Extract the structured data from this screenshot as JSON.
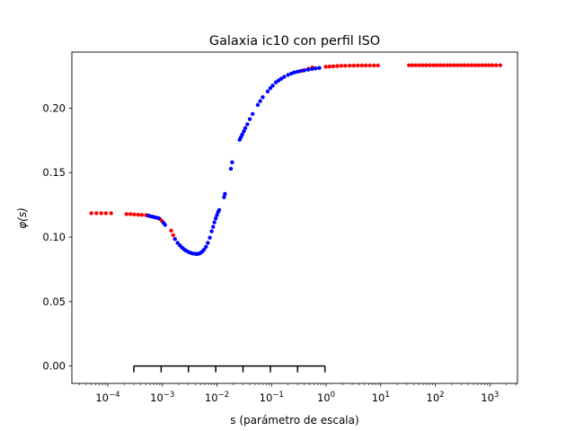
{
  "chart_data": {
    "type": "scatter",
    "title": "Galaxia ic10 con perfil ISO",
    "xlabel": "s (parámetro de escala)",
    "ylabel": "φ(s)",
    "xscale": "log",
    "xlim": [
      2.2e-05,
      3200
    ],
    "ylim": [
      -0.0135,
      0.2435
    ],
    "grid": false,
    "y_ticks": [
      0.0,
      0.05,
      0.1,
      0.15,
      0.2
    ],
    "y_tick_labels": [
      "0.00",
      "0.05",
      "0.10",
      "0.15",
      "0.20"
    ],
    "x_ticks": [
      0.0001,
      0.001,
      0.01,
      0.1,
      1,
      10,
      100,
      1000
    ],
    "x_tick_labels": [
      {
        "base": "10",
        "exp": "−4"
      },
      {
        "base": "10",
        "exp": "−3"
      },
      {
        "base": "10",
        "exp": "−2"
      },
      {
        "base": "10",
        "exp": "−1"
      },
      {
        "base": "10",
        "exp": "0"
      },
      {
        "base": "10",
        "exp": "1"
      },
      {
        "base": "10",
        "exp": "2"
      },
      {
        "base": "10",
        "exp": "3"
      }
    ],
    "series": [
      {
        "color": "#ff0000",
        "points": [
          [
            5e-05,
            0.1185
          ],
          [
            6.2e-05,
            0.1185
          ],
          [
            7.6e-05,
            0.1185
          ],
          [
            9.2e-05,
            0.1185
          ],
          [
            0.000115,
            0.1185
          ],
          [
            0.00022,
            0.1178
          ],
          [
            0.00026,
            0.1178
          ],
          [
            0.000305,
            0.1176
          ],
          [
            0.00036,
            0.1174
          ],
          [
            0.00042,
            0.1172
          ],
          [
            0.0005,
            0.117
          ],
          [
            0.0009,
            0.114
          ],
          [
            0.00098,
            0.1125
          ],
          [
            0.00145,
            0.105
          ],
          [
            0.00158,
            0.1015
          ],
          [
            0.38,
            0.2292
          ],
          [
            0.47,
            0.2305
          ],
          [
            0.56,
            0.2315
          ],
          [
            0.98,
            0.2321
          ],
          [
            1.15,
            0.2323
          ],
          [
            1.35,
            0.2325
          ],
          [
            1.6,
            0.2327
          ],
          [
            1.9,
            0.2328
          ],
          [
            2.25,
            0.2329
          ],
          [
            2.7,
            0.233
          ],
          [
            3.2,
            0.233
          ],
          [
            3.8,
            0.2331
          ],
          [
            4.5,
            0.2331
          ],
          [
            5.3,
            0.2331
          ],
          [
            6.3,
            0.2331
          ],
          [
            7.5,
            0.2331
          ],
          [
            8.9,
            0.2331
          ],
          [
            33,
            0.2333
          ],
          [
            38,
            0.2333
          ],
          [
            44,
            0.2333
          ],
          [
            51,
            0.2333
          ],
          [
            59,
            0.2333
          ],
          [
            68,
            0.2333
          ],
          [
            79,
            0.2333
          ],
          [
            92,
            0.2333
          ],
          [
            106,
            0.2333
          ],
          [
            123,
            0.2333
          ],
          [
            142,
            0.2333
          ],
          [
            165,
            0.2333
          ],
          [
            191,
            0.2333
          ],
          [
            221,
            0.2333
          ],
          [
            256,
            0.2333
          ],
          [
            296,
            0.2333
          ],
          [
            343,
            0.2333
          ],
          [
            397,
            0.2333
          ],
          [
            460,
            0.2333
          ],
          [
            532,
            0.2333
          ],
          [
            616,
            0.2333
          ],
          [
            713,
            0.2333
          ],
          [
            826,
            0.2333
          ],
          [
            956,
            0.2333
          ],
          [
            1107,
            0.2333
          ],
          [
            1300,
            0.2333
          ],
          [
            1550,
            0.2333
          ]
        ]
      },
      {
        "color": "#0000ff",
        "points": [
          [
            0.00055,
            0.1167
          ],
          [
            0.0006,
            0.1162
          ],
          [
            0.00066,
            0.1158
          ],
          [
            0.00072,
            0.1154
          ],
          [
            0.00079,
            0.115
          ],
          [
            0.00086,
            0.1146
          ],
          [
            0.00105,
            0.111
          ],
          [
            0.00112,
            0.1095
          ],
          [
            0.0017,
            0.0985
          ],
          [
            0.0019,
            0.0955
          ],
          [
            0.0021,
            0.0935
          ],
          [
            0.0023,
            0.0918
          ],
          [
            0.0025,
            0.0905
          ],
          [
            0.0027,
            0.0895
          ],
          [
            0.003,
            0.0885
          ],
          [
            0.0033,
            0.0878
          ],
          [
            0.0036,
            0.0873
          ],
          [
            0.004,
            0.087
          ],
          [
            0.0043,
            0.0869
          ],
          [
            0.0046,
            0.0871
          ],
          [
            0.005,
            0.0877
          ],
          [
            0.0054,
            0.0888
          ],
          [
            0.0058,
            0.0903
          ],
          [
            0.0063,
            0.0925
          ],
          [
            0.0068,
            0.0955
          ],
          [
            0.0074,
            0.0995
          ],
          [
            0.008,
            0.1045
          ],
          [
            0.0085,
            0.108
          ],
          [
            0.009,
            0.1115
          ],
          [
            0.0095,
            0.1145
          ],
          [
            0.01,
            0.117
          ],
          [
            0.0105,
            0.1195
          ],
          [
            0.011,
            0.121
          ],
          [
            0.0135,
            0.131
          ],
          [
            0.014,
            0.1335
          ],
          [
            0.018,
            0.153
          ],
          [
            0.019,
            0.158
          ],
          [
            0.026,
            0.1755
          ],
          [
            0.0275,
            0.1775
          ],
          [
            0.029,
            0.1795
          ],
          [
            0.031,
            0.182
          ],
          [
            0.033,
            0.1845
          ],
          [
            0.036,
            0.1875
          ],
          [
            0.04,
            0.1915
          ],
          [
            0.045,
            0.1955
          ],
          [
            0.056,
            0.2025
          ],
          [
            0.062,
            0.2055
          ],
          [
            0.069,
            0.2085
          ],
          [
            0.085,
            0.213
          ],
          [
            0.095,
            0.2155
          ],
          [
            0.105,
            0.2175
          ],
          [
            0.12,
            0.22
          ],
          [
            0.135,
            0.2215
          ],
          [
            0.15,
            0.2228
          ],
          [
            0.17,
            0.2243
          ],
          [
            0.2,
            0.2258
          ],
          [
            0.23,
            0.2268
          ],
          [
            0.26,
            0.2277
          ],
          [
            0.3,
            0.2283
          ],
          [
            0.34,
            0.2288
          ],
          [
            0.4,
            0.2294
          ],
          [
            0.47,
            0.2299
          ],
          [
            0.55,
            0.2304
          ],
          [
            0.64,
            0.2308
          ],
          [
            0.75,
            0.2312
          ]
        ]
      }
    ],
    "scale_bar": {
      "color": "#000000",
      "y": 0.0,
      "ticks": [
        0.0003,
        0.00095,
        0.003,
        0.0095,
        0.03,
        0.095,
        0.3,
        0.95
      ]
    }
  }
}
